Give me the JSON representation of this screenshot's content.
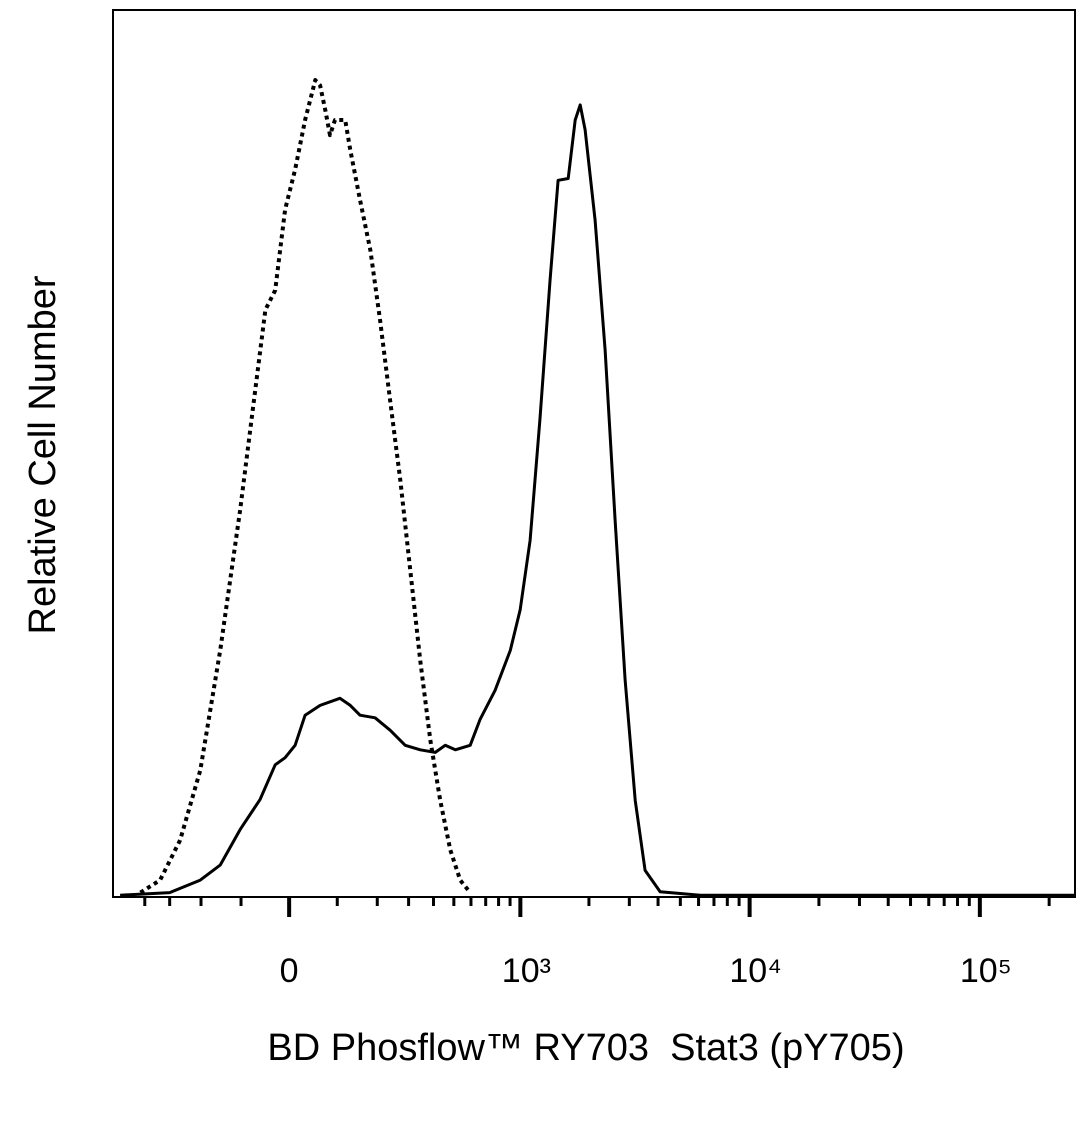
{
  "chart_data": {
    "type": "line",
    "x_label": "BD Phosflow™ RY703  Stat3 (pY705)",
    "y_label": "Relative Cell Number",
    "xscale": "asinh",
    "xlim": [
      -565,
      259000
    ],
    "ylim": [
      0,
      100
    ],
    "xticks": [
      {
        "value": 0,
        "label": "0"
      },
      {
        "value": 1000,
        "label": "10³"
      },
      {
        "value": 10000,
        "label": "10⁴"
      },
      {
        "value": 100000,
        "label": "10⁵"
      }
    ],
    "xminorticks": [
      -400,
      -300,
      -200,
      -100,
      100,
      200,
      300,
      400,
      500,
      600,
      700,
      800,
      900,
      2000,
      3000,
      4000,
      5000,
      6000,
      7000,
      8000,
      9000,
      20000,
      30000,
      40000,
      50000,
      60000,
      70000,
      80000,
      90000,
      200000
    ],
    "series": [
      {
        "color": "#000000",
        "dash": "dotted",
        "x": [
          -420,
          -336,
          -264,
          -202,
          -149,
          -102,
          -69,
          -48,
          -28,
          -8,
          12,
          32,
          53,
          63,
          74,
          84,
          95,
          118,
          130,
          154,
          181,
          208,
          238,
          271,
          306,
          344,
          386,
          431,
          481,
          535,
          595
        ],
        "values": [
          0.5,
          1.9,
          6.4,
          14.3,
          27.8,
          43.6,
          57.2,
          66.2,
          68.4,
          77.5,
          82.0,
          87.6,
          92.1,
          91.5,
          88.7,
          85.9,
          87.6,
          87.6,
          84.2,
          78.6,
          72.9,
          65.0,
          56.0,
          47.0,
          36.8,
          26.7,
          17.7,
          10.9,
          5.3,
          1.9,
          0.5
        ]
      },
      {
        "color": "#000000",
        "dash": "solid",
        "x": [
          -524,
          -300,
          -202,
          -149,
          -102,
          -59,
          -28,
          -8,
          12,
          32,
          63,
          106,
          130,
          154,
          194,
          238,
          288,
          344,
          408,
          455,
          508,
          595,
          660,
          772,
          902,
          998,
          1104,
          1220,
          1352,
          1466,
          1624,
          1742,
          1832,
          1924,
          2128,
          2352,
          2600,
          2876,
          3180,
          3514,
          4084,
          6100,
          259000
        ],
        "values": [
          0.2,
          0.5,
          1.9,
          3.6,
          7.6,
          11.0,
          14.9,
          15.7,
          17.1,
          20.5,
          21.6,
          22.4,
          21.6,
          20.5,
          20.2,
          18.8,
          17.1,
          16.6,
          16.3,
          17.1,
          16.6,
          17.1,
          20.0,
          23.3,
          27.8,
          32.4,
          40.2,
          53.8,
          69.6,
          80.8,
          81.0,
          87.6,
          89.3,
          86.5,
          76.3,
          61.7,
          42.5,
          24.5,
          10.9,
          3.0,
          0.6,
          0.2,
          0.2
        ]
      }
    ]
  }
}
